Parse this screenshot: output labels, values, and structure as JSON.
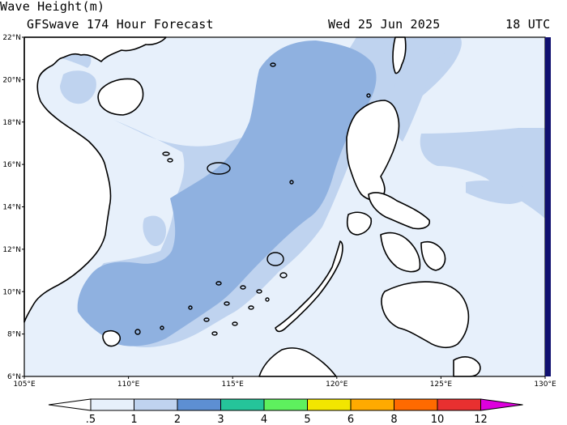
{
  "header": {
    "title": "Wave Height(m)",
    "subtitle": "GFSwave 174 Hour Forecast",
    "date": "Wed 25 Jun 2025",
    "time": "18 UTC"
  },
  "map": {
    "lat_ticks": [
      "22°N",
      "20°N",
      "18°N",
      "16°N",
      "14°N",
      "12°N",
      "10°N",
      "8°N",
      "6°N"
    ],
    "lon_ticks": [
      "105°E",
      "110°E",
      "115°E",
      "120°E",
      "125°E",
      "130°E"
    ],
    "lat_range": [
      6,
      22
    ],
    "lon_range": [
      105,
      130
    ],
    "colors": {
      "ocean_0_5": "#e7f0fb",
      "wave_1_2": "#bfd3ef",
      "wave_2_3": "#8fb1e0",
      "land": "#ffffff",
      "coast": "#000000",
      "edge_bar": "#101070"
    }
  },
  "colorbar": {
    "labels": [
      ".5",
      "1",
      "2",
      "3",
      "4",
      "5",
      "6",
      "8",
      "10",
      "12"
    ],
    "colors": [
      "#ffffff",
      "#e7f0fb",
      "#bfd3ef",
      "#5d8fd3",
      "#25c49a",
      "#5ef05e",
      "#f2e600",
      "#ffaa00",
      "#ff6a00",
      "#e83030",
      "#bb0000",
      "#dd00dd"
    ]
  }
}
